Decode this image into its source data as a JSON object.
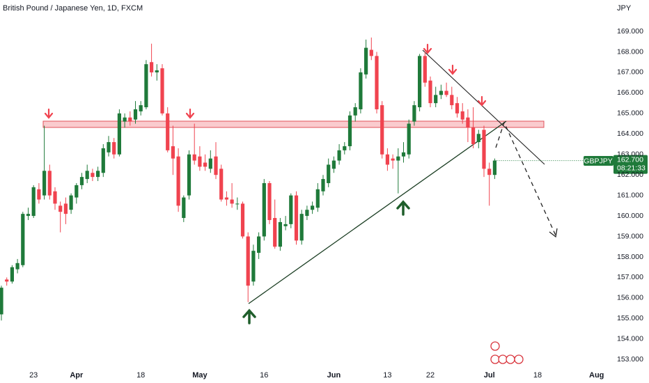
{
  "chart_data": {
    "type": "candlestick",
    "title": "British Pound / Japanese Yen, 1D, FXCM",
    "y_axis_label": "JPY",
    "symbol": "GBPJPY",
    "last_price": {
      "value": 162.7,
      "label": "162.700"
    },
    "countdown": "08:21:33",
    "up_color": "#1f7a3a",
    "down_color": "#f0434f",
    "grid": false,
    "ylim": [
      152.6,
      170.53
    ],
    "yticks": [
      {
        "value": 153,
        "label": "153.000"
      },
      {
        "value": 154,
        "label": "154.000"
      },
      {
        "value": 155,
        "label": "155.000"
      },
      {
        "value": 156,
        "label": "156.000"
      },
      {
        "value": 157,
        "label": "157.000"
      },
      {
        "value": 158,
        "label": "158.000"
      },
      {
        "value": 159,
        "label": "159.000"
      },
      {
        "value": 160,
        "label": "160.000"
      },
      {
        "value": 161,
        "label": "161.000"
      },
      {
        "value": 162,
        "label": "162.000"
      },
      {
        "value": 163,
        "label": "163.000"
      },
      {
        "value": 164,
        "label": "164.000"
      },
      {
        "value": 165,
        "label": "165.000"
      },
      {
        "value": 166,
        "label": "166.000"
      },
      {
        "value": 167,
        "label": "167.000"
      },
      {
        "value": 168,
        "label": "168.000"
      },
      {
        "value": 169,
        "label": "169.000"
      }
    ],
    "categories": [
      null,
      null,
      null,
      null,
      null,
      null,
      "23",
      null,
      null,
      null,
      null,
      null,
      null,
      null,
      "Apr",
      null,
      null,
      null,
      null,
      null,
      null,
      null,
      null,
      null,
      null,
      null,
      "18",
      null,
      null,
      null,
      null,
      null,
      null,
      null,
      null,
      null,
      null,
      "May",
      null,
      null,
      null,
      null,
      null,
      null,
      null,
      null,
      null,
      null,
      null,
      "16",
      null,
      null,
      null,
      null,
      null,
      null,
      null,
      null,
      null,
      null,
      null,
      null,
      "Jun",
      null,
      null,
      null,
      null,
      null,
      null,
      null,
      null,
      null,
      "13",
      null,
      null,
      null,
      null,
      null,
      null,
      null,
      "22",
      null,
      null,
      null,
      null,
      null,
      null,
      null,
      null,
      null,
      null,
      "Jul",
      null,
      null,
      null,
      null,
      null,
      null,
      null,
      null,
      "18",
      null,
      null,
      null,
      null,
      null,
      null,
      null,
      null,
      null,
      null,
      "Aug"
    ],
    "open": [
      155.2,
      156.9,
      156.8,
      157.4,
      157.6,
      160.0,
      160.0,
      161.3,
      161.0,
      162.2,
      161.2,
      160.5,
      160.6,
      160.3,
      160.9,
      161.5,
      161.8,
      162.1,
      161.9,
      162.1,
      163.1,
      163.6,
      163.0,
      164.6,
      164.8,
      164.7,
      165.1,
      165.3,
      167.5,
      167.0,
      167.2,
      165.0,
      163.4,
      162.9,
      159.9,
      161.0,
      163.0,
      162.9,
      162.6,
      162.3,
      162.9,
      162.3,
      160.9,
      160.8,
      160.6,
      160.6,
      159.0,
      156.8,
      158.2,
      159.0,
      161.6,
      159.9,
      158.5,
      159.5,
      159.6,
      161.0,
      158.8,
      160.0,
      160.3,
      160.4,
      161.2,
      161.6,
      162.3,
      162.7,
      163.2,
      163.4,
      164.9,
      165.2,
      166.9,
      168.1,
      167.8,
      165.4,
      163.0,
      162.8,
      162.7,
      162.9,
      163.0,
      164.6,
      165.3,
      167.8,
      166.6,
      165.5,
      165.9,
      166.1,
      165.9,
      165.5,
      165.1,
      164.8,
      164.3,
      163.6,
      164.2,
      162.3,
      162.0,
      null,
      null,
      null,
      null,
      null,
      null,
      null,
      null,
      null,
      null,
      null,
      null,
      null,
      null,
      null,
      null,
      null,
      null,
      null
    ],
    "high": [
      156.6,
      157.0,
      157.6,
      157.9,
      160.2,
      160.4,
      161.5,
      161.6,
      164.4,
      162.5,
      161.4,
      160.7,
      160.9,
      161.1,
      161.6,
      162.1,
      162.5,
      162.3,
      162.4,
      163.5,
      163.9,
      163.8,
      165.2,
      165.0,
      165.1,
      165.6,
      165.6,
      167.6,
      168.4,
      167.4,
      167.4,
      165.3,
      164.4,
      163.3,
      161.0,
      163.2,
      164.5,
      163.4,
      163.0,
      163.2,
      163.6,
      162.5,
      161.2,
      161.6,
      160.9,
      160.7,
      159.2,
      158.6,
      159.2,
      161.8,
      161.7,
      160.8,
      159.9,
      160.0,
      161.1,
      161.2,
      160.3,
      160.5,
      160.7,
      161.6,
      162.0,
      162.8,
      162.9,
      163.5,
      163.6,
      165.1,
      165.5,
      167.2,
      168.6,
      168.7,
      168.0,
      165.6,
      163.3,
      163.0,
      163.3,
      163.6,
      164.7,
      165.6,
      167.9,
      168.0,
      166.8,
      166.3,
      166.4,
      166.5,
      166.3,
      165.8,
      165.5,
      165.2,
      165.3,
      164.2,
      164.4,
      162.6,
      162.8,
      null,
      null,
      null,
      null,
      null,
      null,
      null,
      null,
      null,
      null,
      null,
      null,
      null,
      null,
      null,
      null,
      null,
      null,
      null
    ],
    "low": [
      154.9,
      156.6,
      156.7,
      157.2,
      157.5,
      159.8,
      159.9,
      160.6,
      160.8,
      160.8,
      160.3,
      159.2,
      159.6,
      160.1,
      160.6,
      161.3,
      161.6,
      161.7,
      161.7,
      161.9,
      162.9,
      162.8,
      162.9,
      164.3,
      164.4,
      164.5,
      164.9,
      165.2,
      166.8,
      166.6,
      164.9,
      163.1,
      162.0,
      160.2,
      159.7,
      160.8,
      162.5,
      162.2,
      162.2,
      162.1,
      161.8,
      160.7,
      160.5,
      160.4,
      160.3,
      158.9,
      155.8,
      156.6,
      157.9,
      158.8,
      159.6,
      158.4,
      158.3,
      159.3,
      159.4,
      158.6,
      158.6,
      159.8,
      160.1,
      160.2,
      161.0,
      161.4,
      162.1,
      162.5,
      163.0,
      163.2,
      164.6,
      165.0,
      166.7,
      167.6,
      165.0,
      162.8,
      162.2,
      162.3,
      161.1,
      162.6,
      162.8,
      164.4,
      165.1,
      166.3,
      165.3,
      165.3,
      165.7,
      165.8,
      165.2,
      164.8,
      164.5,
      163.6,
      163.3,
      163.3,
      161.9,
      160.5,
      161.8,
      null,
      null,
      null,
      null,
      null,
      null,
      null,
      null,
      null,
      null,
      null,
      null,
      null,
      null,
      null,
      null,
      null,
      null,
      null
    ],
    "close": [
      156.5,
      156.8,
      157.5,
      157.7,
      160.1,
      160.1,
      161.4,
      160.8,
      162.2,
      161.0,
      160.6,
      160.2,
      160.1,
      161.0,
      161.5,
      161.9,
      162.2,
      161.9,
      162.2,
      163.3,
      163.6,
      163.0,
      165.0,
      164.8,
      164.6,
      165.2,
      165.4,
      167.4,
      167.0,
      167.1,
      165.0,
      163.2,
      162.8,
      160.5,
      160.9,
      163.0,
      162.7,
      162.4,
      162.4,
      162.8,
      162.0,
      160.8,
      160.8,
      160.6,
      160.6,
      159.0,
      156.6,
      158.3,
      159.0,
      161.6,
      159.8,
      158.5,
      159.7,
      159.6,
      161.0,
      158.8,
      160.1,
      160.3,
      160.5,
      161.3,
      161.8,
      162.5,
      162.7,
      163.2,
      163.4,
      164.9,
      165.3,
      167.0,
      168.2,
      167.8,
      165.2,
      163.0,
      162.5,
      162.7,
      162.9,
      163.1,
      164.5,
      165.4,
      167.8,
      166.5,
      165.5,
      165.9,
      166.1,
      165.9,
      165.4,
      165.0,
      164.7,
      164.3,
      163.5,
      164.0,
      162.3,
      162.0,
      162.7,
      null,
      null,
      null,
      null,
      null,
      null,
      null,
      null,
      null,
      null,
      null,
      null,
      null,
      null,
      null,
      null,
      null,
      null,
      null
    ]
  }
}
